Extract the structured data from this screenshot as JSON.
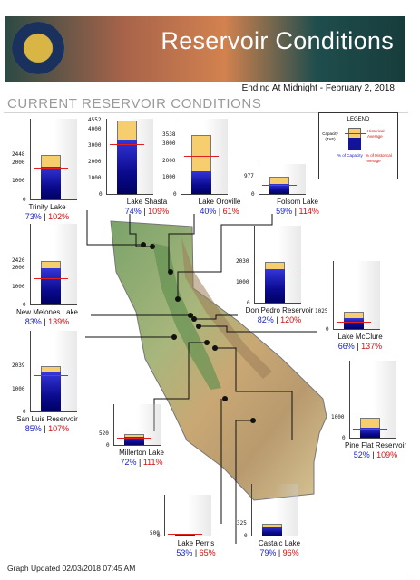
{
  "header": {
    "title": "Reservoir Conditions",
    "subtitle": "Ending At Midnight - February 2, 2018",
    "section_title": "CURRENT RESERVOIR CONDITIONS",
    "seal_icon": "california-dwr-seal-icon"
  },
  "legend": {
    "title": "LEGEND",
    "capacity": "Capacity (TAF)",
    "historical_average": "Historical Average",
    "pct_capacity": "% of Capacity",
    "pct_historical": "% of Historical Average"
  },
  "colors": {
    "storage_fill": "#0a0a8e",
    "capacity_fill": "#f7ce6e",
    "historical_line": "#e02020",
    "pct_capacity_text": "#1a24c8",
    "pct_historical_text": "#d01010"
  },
  "reservoirs": [
    {
      "id": "trinity",
      "name": "Trinity Lake",
      "capacity": "2448",
      "ticks": [
        "2448",
        "2000",
        "1000",
        "0"
      ],
      "pct_capacity": "73%",
      "pct_historical": "102%",
      "storage_fraction": 0.73,
      "avg_fraction": 0.72
    },
    {
      "id": "shasta",
      "name": "Lake Shasta",
      "capacity": "4552",
      "ticks": [
        "4552",
        "4000",
        "3000",
        "2000",
        "1000",
        "0"
      ],
      "pct_capacity": "74%",
      "pct_historical": "109%",
      "storage_fraction": 0.74,
      "avg_fraction": 0.68
    },
    {
      "id": "oroville",
      "name": "Lake Oroville",
      "capacity": "3538",
      "ticks": [
        "3538",
        "3000",
        "2000",
        "1000",
        "0"
      ],
      "pct_capacity": "40%",
      "pct_historical": "61%",
      "storage_fraction": 0.4,
      "avg_fraction": 0.66
    },
    {
      "id": "folsom",
      "name": "Folsom Lake",
      "capacity": "977",
      "ticks": [
        "977",
        "0"
      ],
      "pct_capacity": "59%",
      "pct_historical": "114%",
      "storage_fraction": 0.59,
      "avg_fraction": 0.52
    },
    {
      "id": "newmelones",
      "name": "New Melones Lake",
      "capacity": "2420",
      "ticks": [
        "2420",
        "2000",
        "1000",
        "0"
      ],
      "pct_capacity": "83%",
      "pct_historical": "139%",
      "storage_fraction": 0.83,
      "avg_fraction": 0.6
    },
    {
      "id": "donpedro",
      "name": "Don Pedro Reservoir",
      "capacity": "2030",
      "ticks": [
        "2030",
        "1000",
        "0"
      ],
      "pct_capacity": "82%",
      "pct_historical": "120%",
      "storage_fraction": 0.82,
      "avg_fraction": 0.68
    },
    {
      "id": "mcclure",
      "name": "Lake McClure",
      "capacity": "1025",
      "ticks": [
        "1025",
        "0"
      ],
      "pct_capacity": "66%",
      "pct_historical": "137%",
      "storage_fraction": 0.66,
      "avg_fraction": 0.48
    },
    {
      "id": "sanluis",
      "name": "San Luis Reservoir",
      "capacity": "2039",
      "ticks": [
        "2039",
        "1000",
        "0"
      ],
      "pct_capacity": "85%",
      "pct_historical": "107%",
      "storage_fraction": 0.85,
      "avg_fraction": 0.79
    },
    {
      "id": "millerton",
      "name": "Millerton Lake",
      "capacity": "520",
      "ticks": [
        "520",
        "0"
      ],
      "pct_capacity": "72%",
      "pct_historical": "111%",
      "storage_fraction": 0.72,
      "avg_fraction": 0.65
    },
    {
      "id": "pineflat",
      "name": "Pine Flat Reservoir",
      "capacity": "1000",
      "ticks": [
        "1000",
        "0"
      ],
      "pct_capacity": "52%",
      "pct_historical": "109%",
      "storage_fraction": 0.52,
      "avg_fraction": 0.48
    },
    {
      "id": "perris",
      "name": "Lake Perris",
      "capacity": "500",
      "ticks": [
        "500",
        "0"
      ],
      "pct_capacity": "53%",
      "pct_historical": "65%",
      "storage_fraction": 0.53,
      "avg_fraction": 0.82
    },
    {
      "id": "castaic",
      "name": "Castaic Lake",
      "capacity": "325",
      "ticks": [
        "325",
        "0"
      ],
      "pct_capacity": "79%",
      "pct_historical": "96%",
      "storage_fraction": 0.79,
      "avg_fraction": 0.82
    }
  ],
  "footer": {
    "updated": "Graph Updated 02/03/2018 07:45 AM"
  }
}
